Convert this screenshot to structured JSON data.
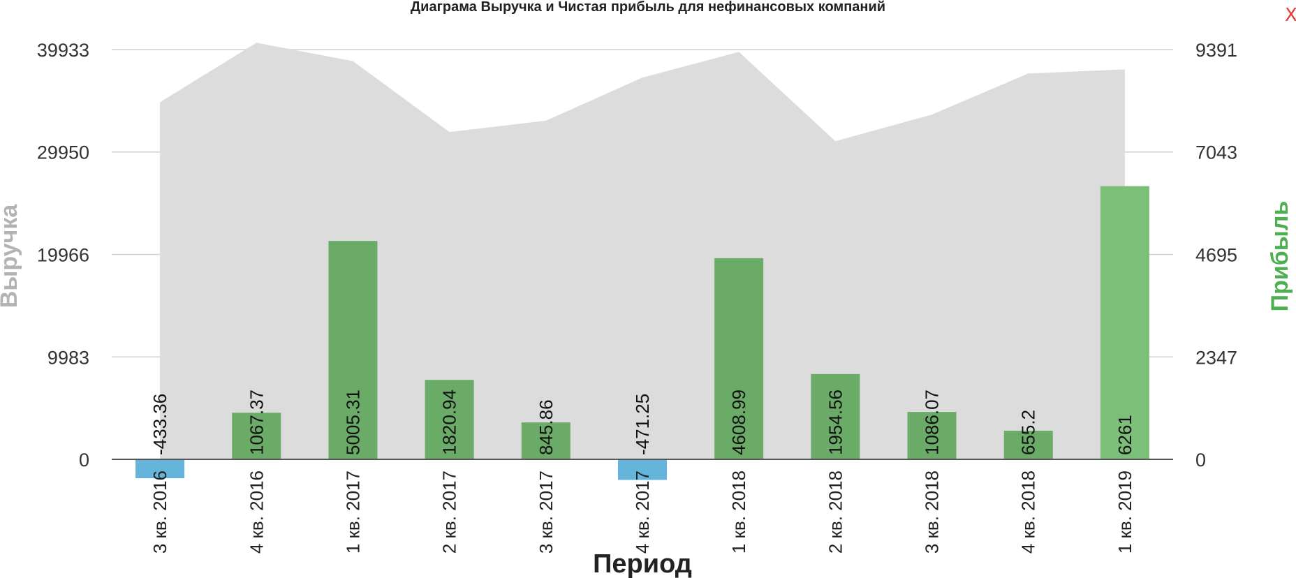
{
  "close_label": "X",
  "chart_data": {
    "type": "bar",
    "title": "Диаграма Выручка и Чистая прибыль для нефинансовых компаний",
    "xlabel": "Период",
    "ylabel_left": "Выручка",
    "ylabel_right": "Прибыль",
    "categories": [
      "3 кв. 2016",
      "4 кв. 2016",
      "1 кв. 2017",
      "2 кв. 2017",
      "3 кв. 2017",
      "4 кв. 2017",
      "1 кв. 2018",
      "2 кв. 2018",
      "3 кв. 2018",
      "4 кв. 2018",
      "1 кв. 2019"
    ],
    "left_axis": {
      "ylim": [
        0,
        39933
      ],
      "ticks": [
        0,
        9983,
        19966,
        29950,
        39933
      ]
    },
    "right_axis": {
      "ylim": [
        0,
        9391
      ],
      "ticks": [
        0,
        2347,
        4695,
        7043,
        9391
      ]
    },
    "series": [
      {
        "type": "area",
        "axis": "left",
        "color": "#dcdcdc",
        "values": [
          34800,
          40600,
          38800,
          31900,
          33000,
          37200,
          39700,
          31000,
          33600,
          37600,
          38000
        ]
      },
      {
        "type": "bar",
        "axis": "right",
        "positive_color": "#6aab68",
        "negative_color": "#64b4dc",
        "highlight_color": "#7bbf78",
        "values": [
          -433.36,
          1067.37,
          5005.31,
          1820.94,
          845.86,
          -471.25,
          4608.99,
          1954.56,
          1086.07,
          655.2,
          6261
        ],
        "labels": [
          "-433.36",
          "1067.37",
          "5005.31",
          "1820.94",
          "845.86",
          "-471.25",
          "4608.99",
          "1954.56",
          "1086.07",
          "655.2",
          "6261"
        ]
      }
    ],
    "grid": true
  }
}
